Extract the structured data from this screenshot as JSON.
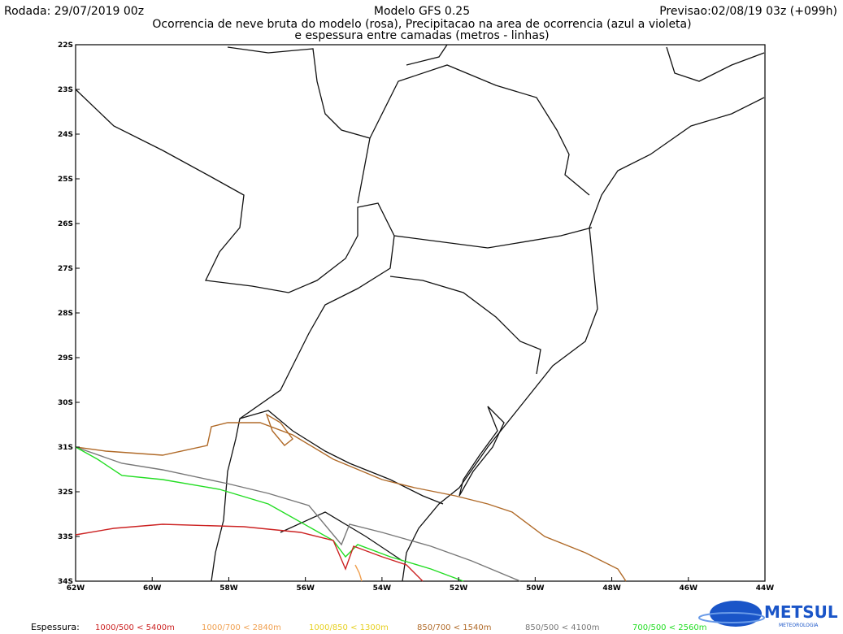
{
  "header": {
    "run": "Rodada: 29/07/2019 00z",
    "model": "Modelo GFS 0.25",
    "forecast": "Previsao:02/08/19 03z (+099h)",
    "subtitle": [
      "Ocorrencia de neve bruta do modelo (rosa), Precipitacao na area de ocorrencia (azul a violeta)",
      "e espessura entre camadas (metros - linhas)"
    ]
  },
  "axes": {
    "lat_labels": [
      "22S",
      "23S",
      "24S",
      "25S",
      "26S",
      "27S",
      "28S",
      "29S",
      "30S",
      "31S",
      "32S",
      "33S",
      "34S"
    ],
    "lon_labels": [
      "62W",
      "60W",
      "58W",
      "56W",
      "54W",
      "52W",
      "50W",
      "48W",
      "46W",
      "44W"
    ]
  },
  "legend": {
    "label": "Espessura:",
    "items": [
      {
        "text": "1000/500 < 5400m",
        "color": "#cc2222"
      },
      {
        "text": "1000/700 < 2840m",
        "color": "#f0a050"
      },
      {
        "text": "1000/850 < 1300m",
        "color": "#e6d020"
      },
      {
        "text": "850/700 < 1540m",
        "color": "#b06a28"
      },
      {
        "text": "850/500 < 4100m",
        "color": "#777777"
      },
      {
        "text": "700/500 < 2560m",
        "color": "#22dd22"
      }
    ]
  },
  "logo": {
    "name": "METSUL",
    "tagline": "METEOROLOGIA"
  }
}
